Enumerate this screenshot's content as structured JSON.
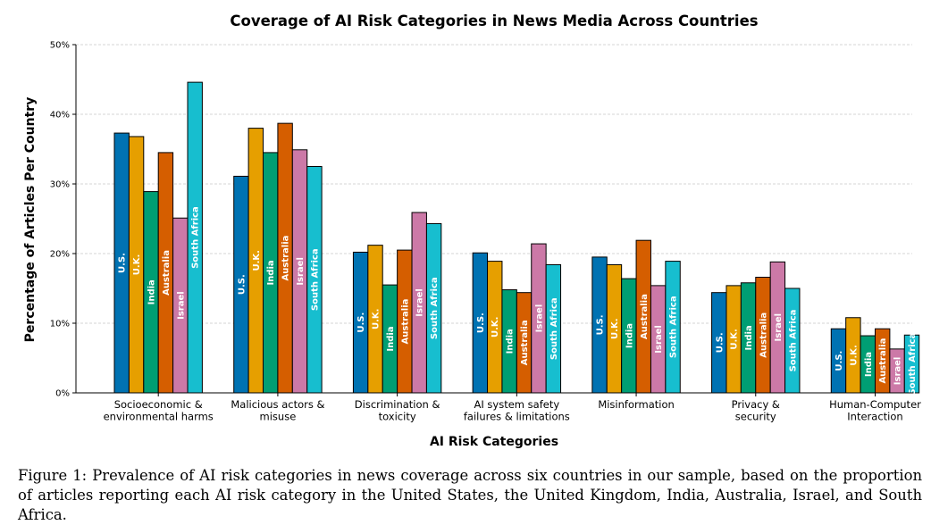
{
  "chart_data": {
    "type": "bar",
    "title": "Coverage of AI Risk Categories in News Media Across Countries",
    "xlabel": "AI Risk Categories",
    "ylabel": "Percentage of Articles Per Country",
    "ylim": [
      0,
      50
    ],
    "yticks": [
      "0%",
      "10%",
      "20%",
      "30%",
      "40%",
      "50%"
    ],
    "grid": true,
    "categories": [
      [
        "Socioeconomic &",
        "environmental harms"
      ],
      [
        "Malicious actors &",
        "misuse"
      ],
      [
        "Discrimination &",
        "toxicity"
      ],
      [
        "AI system safety",
        "failures & limitations"
      ],
      [
        "Misinformation"
      ],
      [
        "Privacy &",
        "security"
      ],
      [
        "Human-Computer",
        "Interaction"
      ]
    ],
    "series": [
      {
        "name": "U.S.",
        "color": "#0072b2",
        "values": [
          37.3,
          31.1,
          20.2,
          20.1,
          19.5,
          14.4,
          9.2
        ]
      },
      {
        "name": "U.K.",
        "color": "#e69f00",
        "values": [
          36.8,
          38.0,
          21.2,
          18.9,
          18.4,
          15.4,
          10.8
        ]
      },
      {
        "name": "India",
        "color": "#009e73",
        "values": [
          28.9,
          34.5,
          15.5,
          14.8,
          16.4,
          15.8,
          8.2
        ]
      },
      {
        "name": "Australia",
        "color": "#d55e00",
        "values": [
          34.5,
          38.7,
          20.5,
          14.4,
          21.9,
          16.6,
          9.2
        ]
      },
      {
        "name": "Israel",
        "color": "#cc79a7",
        "values": [
          25.1,
          34.9,
          25.9,
          21.4,
          15.4,
          18.8,
          6.3
        ]
      },
      {
        "name": "South Africa",
        "color": "#17becf",
        "values": [
          44.6,
          32.5,
          24.3,
          18.4,
          18.9,
          15.0,
          8.3
        ]
      }
    ]
  },
  "caption": "Figure 1: Prevalence of AI risk categories in news coverage across six countries in our sample, based on the proportion of articles reporting each AI risk category in the United States, the United Kingdom, India, Australia, Israel, and South Africa."
}
